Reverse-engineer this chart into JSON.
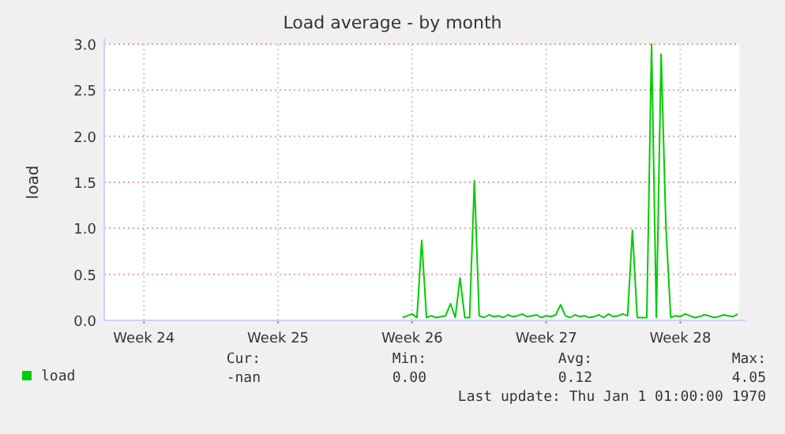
{
  "chart_data": {
    "type": "line",
    "title": "Load average - by month",
    "ylabel": "load",
    "categories": [
      null,
      null,
      null,
      null,
      null,
      null,
      null,
      null,
      "Week 24",
      null,
      null,
      null,
      null,
      null,
      null,
      null,
      null,
      null,
      null,
      null,
      null,
      null,
      null,
      null,
      null,
      null,
      null,
      null,
      null,
      null,
      null,
      null,
      null,
      null,
      null,
      null,
      "Week 25",
      null,
      null,
      null,
      null,
      null,
      null,
      null,
      null,
      null,
      null,
      null,
      null,
      null,
      null,
      null,
      null,
      null,
      null,
      null,
      null,
      null,
      null,
      null,
      null,
      null,
      null,
      null,
      "Week 26",
      null,
      null,
      null,
      null,
      null,
      null,
      null,
      null,
      null,
      null,
      null,
      null,
      null,
      null,
      null,
      null,
      null,
      null,
      null,
      null,
      null,
      null,
      null,
      null,
      null,
      null,
      null,
      "Week 27",
      null,
      null,
      null,
      null,
      null,
      null,
      null,
      null,
      null,
      null,
      null,
      null,
      null,
      null,
      null,
      null,
      null,
      null,
      null,
      null,
      null,
      null,
      null,
      null,
      null,
      null,
      null,
      "Week 28",
      null,
      null,
      null,
      null,
      null,
      null,
      null,
      null,
      null,
      null,
      null,
      null
    ],
    "series": [
      {
        "name": "load",
        "color": "#00cc00",
        "values": [
          null,
          null,
          null,
          null,
          null,
          null,
          null,
          null,
          null,
          null,
          null,
          null,
          null,
          null,
          null,
          null,
          null,
          null,
          null,
          null,
          null,
          null,
          null,
          null,
          null,
          null,
          null,
          null,
          null,
          null,
          null,
          null,
          null,
          null,
          null,
          null,
          null,
          null,
          null,
          null,
          null,
          null,
          null,
          null,
          null,
          null,
          null,
          null,
          null,
          null,
          null,
          null,
          null,
          null,
          null,
          null,
          null,
          null,
          null,
          null,
          null,
          null,
          0.03,
          0.05,
          0.07,
          0.03,
          0.87,
          0.03,
          0.05,
          0.03,
          0.04,
          0.05,
          0.18,
          0.03,
          0.46,
          0.03,
          0.03,
          1.52,
          0.05,
          0.03,
          0.06,
          0.04,
          0.05,
          0.03,
          0.06,
          0.04,
          0.05,
          0.07,
          0.04,
          0.05,
          0.06,
          0.03,
          0.05,
          0.04,
          0.06,
          0.17,
          0.05,
          0.03,
          0.06,
          0.04,
          0.05,
          0.03,
          0.04,
          0.06,
          0.03,
          0.07,
          0.04,
          0.05,
          0.07,
          0.05,
          0.98,
          0.03,
          0.03,
          0.03,
          3.0,
          0.03,
          2.89,
          1.01,
          0.03,
          0.05,
          0.04,
          0.07,
          0.05,
          0.03,
          0.04,
          0.06,
          0.05,
          0.03,
          0.04,
          0.06,
          0.05,
          0.04,
          0.07
        ]
      }
    ],
    "ylim": [
      0,
      3
    ],
    "yticks": [
      {
        "value": 0,
        "label": "0.0"
      },
      {
        "value": 0.5,
        "label": "0.5"
      },
      {
        "value": 1,
        "label": "1.0"
      },
      {
        "value": 1.5,
        "label": "1.5"
      },
      {
        "value": 2,
        "label": "2.0"
      },
      {
        "value": 2.5,
        "label": "2.5"
      },
      {
        "value": 3,
        "label": "3.0"
      }
    ],
    "grid": true,
    "legend": "bottom left",
    "marker": "none",
    "line_style": "solid",
    "annotations": [
      "Cur:",
      "Min:",
      "Avg:",
      "Max:",
      "-nan",
      "0.00",
      "0.12",
      "4.05",
      "Last update: Thu Jan  1 01:00:00 1970"
    ]
  }
}
